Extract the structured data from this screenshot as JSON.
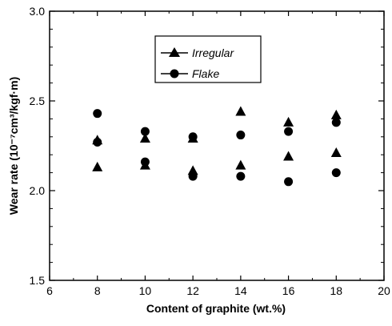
{
  "chart_data": {
    "type": "scatter",
    "xlabel": "Content of graphite (wt.%)",
    "ylabel": "Wear rate (10⁻⁷cm³/kgf·m)",
    "xlim": [
      6,
      20
    ],
    "ylim": [
      1.5,
      3.0
    ],
    "xticks": [
      "6",
      "8",
      "10",
      "12",
      "14",
      "16",
      "18",
      "20"
    ],
    "yticks": [
      "1.5",
      "2.0",
      "2.5",
      "3.0"
    ],
    "grid": false,
    "legend_position": "top-center",
    "series": [
      {
        "name": "Irregular",
        "marker": "triangle",
        "color": "#000000",
        "points": [
          [
            8,
            2.28
          ],
          [
            8,
            2.13
          ],
          [
            10,
            2.29
          ],
          [
            10,
            2.14
          ],
          [
            12,
            2.29
          ],
          [
            12,
            2.11
          ],
          [
            14,
            2.44
          ],
          [
            14,
            2.14
          ],
          [
            16,
            2.38
          ],
          [
            16,
            2.19
          ],
          [
            18,
            2.42
          ],
          [
            18,
            2.21
          ]
        ]
      },
      {
        "name": "Flake",
        "marker": "circle",
        "color": "#000000",
        "points": [
          [
            8,
            2.43
          ],
          [
            8,
            2.27
          ],
          [
            10,
            2.33
          ],
          [
            10,
            2.16
          ],
          [
            12,
            2.3
          ],
          [
            12,
            2.08
          ],
          [
            14,
            2.31
          ],
          [
            14,
            2.08
          ],
          [
            16,
            2.33
          ],
          [
            16,
            2.05
          ],
          [
            18,
            2.38
          ],
          [
            18,
            2.1
          ]
        ]
      }
    ]
  }
}
